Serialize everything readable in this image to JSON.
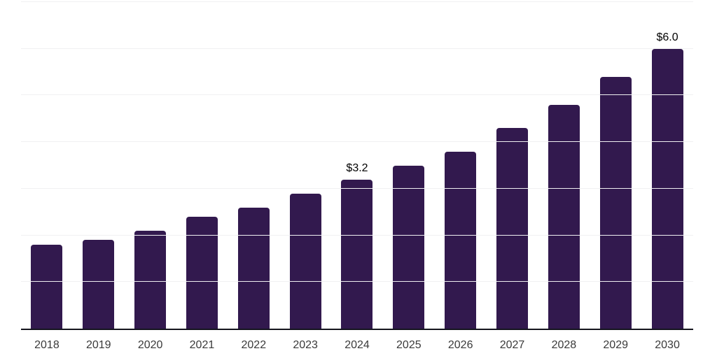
{
  "chart_data": {
    "type": "bar",
    "title": "",
    "xlabel": "",
    "ylabel": "",
    "categories": [
      "2018",
      "2019",
      "2020",
      "2021",
      "2022",
      "2023",
      "2024",
      "2025",
      "2026",
      "2027",
      "2028",
      "2029",
      "2030"
    ],
    "values": [
      1.8,
      1.9,
      2.1,
      2.4,
      2.6,
      2.9,
      3.2,
      3.5,
      3.8,
      4.3,
      4.8,
      5.4,
      6.0
    ],
    "value_labels": [
      "",
      "",
      "",
      "",
      "",
      "",
      "$3.2",
      "",
      "",
      "",
      "",
      "",
      "$6.0"
    ],
    "ylim": [
      0,
      7
    ],
    "grid": "horizontal gridlines every 1.0 unit",
    "legend": "none",
    "colors": {
      "bar": "#32194E",
      "axis_line": "#15151E",
      "gridline": "#F0F0F2",
      "tick_label": "#3A3A3A",
      "value_label": "#000000",
      "background": "#FFFFFF"
    }
  }
}
